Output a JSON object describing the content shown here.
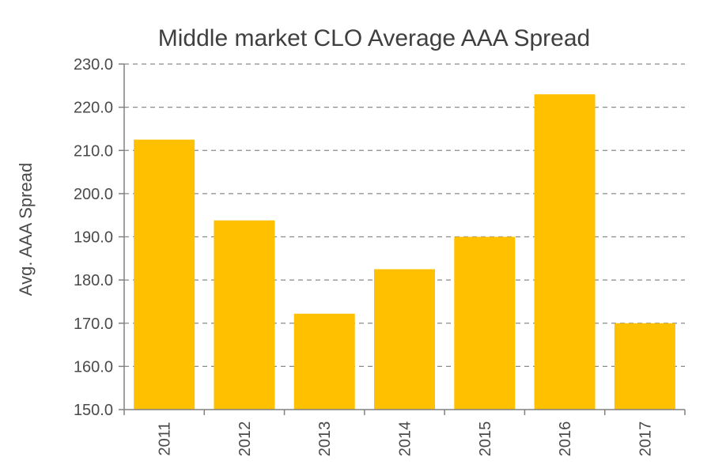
{
  "chart_data": {
    "type": "bar",
    "title": "Middle market CLO Average AAA Spread",
    "xlabel": "",
    "ylabel": "Avg. AAA Spread",
    "categories": [
      "2011",
      "2012",
      "2013",
      "2014",
      "2015",
      "2016",
      "2017"
    ],
    "values": [
      212.5,
      193.8,
      172.2,
      182.5,
      190.0,
      223.0,
      170.0
    ],
    "ylim": [
      150,
      230
    ],
    "yticks": [
      150,
      160,
      170,
      180,
      190,
      200,
      210,
      220,
      230
    ],
    "ytick_labels": [
      "150.0",
      "160.0",
      "170.0",
      "180.0",
      "190.0",
      "200.0",
      "210.0",
      "220.0",
      "230.0"
    ],
    "grid": true,
    "legend": "none",
    "bar_color": "#FFC000"
  }
}
